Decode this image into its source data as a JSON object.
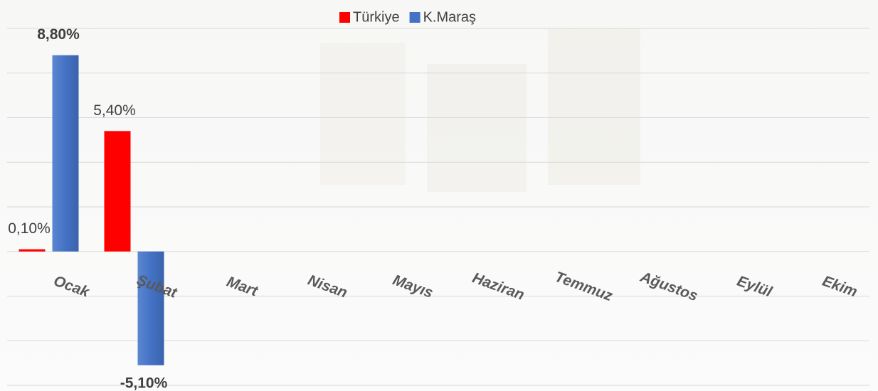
{
  "chart_data": {
    "type": "bar",
    "categories": [
      "Ocak",
      "Şubat",
      "Mart",
      "Nisan",
      "Mayıs",
      "Haziran",
      "Temmuz",
      "Ağustos",
      "Eylül",
      "Ekim"
    ],
    "series": [
      {
        "name": "Türkiye",
        "color": "#ff0000",
        "values": [
          0.1,
          5.4,
          null,
          null,
          null,
          null,
          null,
          null,
          null,
          null
        ],
        "value_labels": [
          "0,10%",
          "5,40%",
          null,
          null,
          null,
          null,
          null,
          null,
          null,
          null
        ]
      },
      {
        "name": "K.Maraş",
        "color": "#4472c4",
        "values": [
          8.8,
          -5.1,
          null,
          null,
          null,
          null,
          null,
          null,
          null,
          null
        ],
        "value_labels": [
          "8,80%",
          "-5,10%",
          null,
          null,
          null,
          null,
          null,
          null,
          null,
          null
        ]
      }
    ],
    "ylim": [
      -6,
      10
    ],
    "yticks": [
      -6,
      -4,
      -2,
      0,
      2,
      4,
      6,
      8,
      10
    ],
    "grid": true,
    "legend": "top"
  }
}
